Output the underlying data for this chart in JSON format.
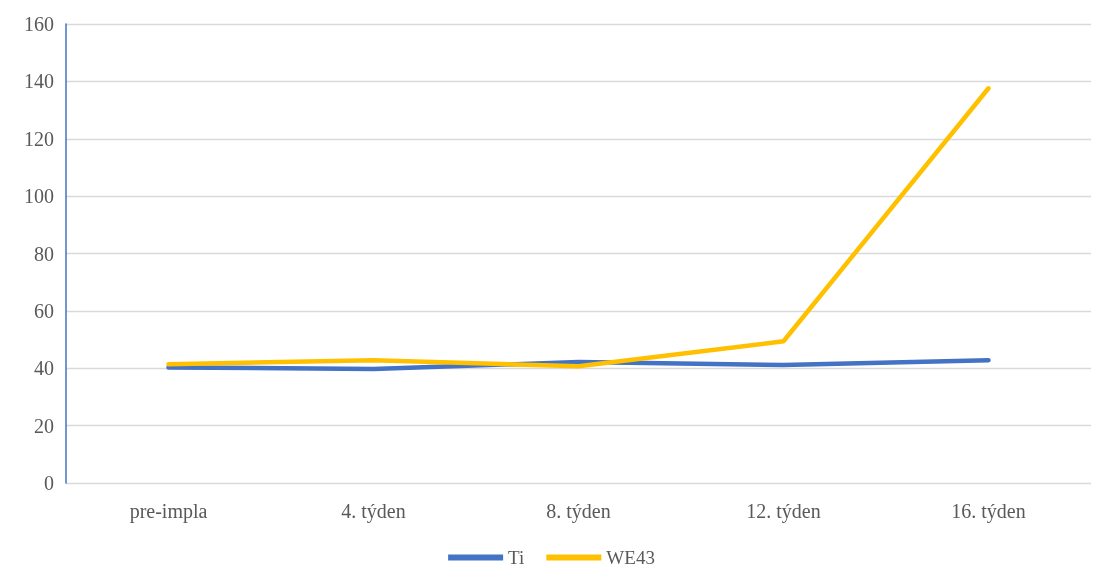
{
  "chart_data": {
    "type": "line",
    "categories": [
      "pre-impla",
      "4. týden",
      "8. týden",
      "12. týden",
      "16. týden"
    ],
    "series": [
      {
        "name": "Ti",
        "color": "#4472c4",
        "values": [
          40.3,
          39.7,
          42.2,
          41.1,
          42.8
        ]
      },
      {
        "name": "WE43",
        "color": "#ffc000",
        "values": [
          41.4,
          42.8,
          40.7,
          49.4,
          137.6
        ]
      }
    ],
    "ylim": [
      0,
      160
    ],
    "yticks": [
      0,
      20,
      40,
      60,
      80,
      100,
      120,
      140,
      160
    ],
    "grid": "y",
    "legend": "bottom",
    "marker": "none",
    "line_style": "solid"
  }
}
